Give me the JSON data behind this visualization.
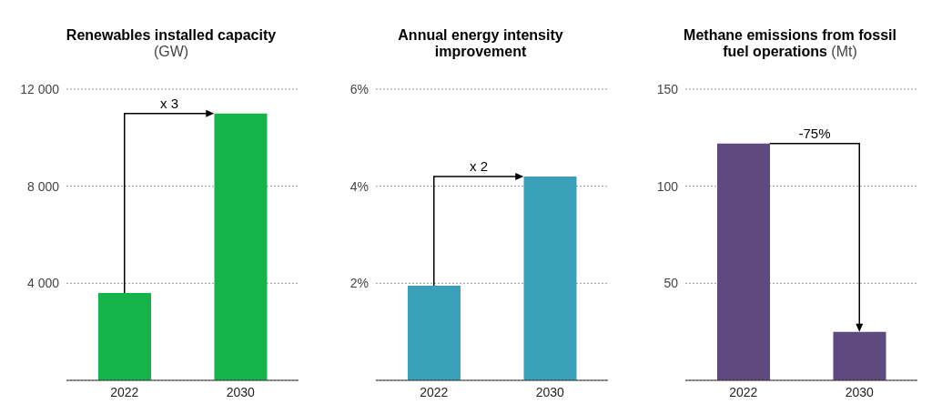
{
  "chart_data": [
    {
      "type": "bar",
      "title": "Renewables installed capacity (GW)",
      "categories": [
        "2022",
        "2030"
      ],
      "values": [
        3600,
        11000
      ],
      "color": "#14b44a",
      "ylim": [
        0,
        12000
      ],
      "yticks": [
        {
          "value": 4000,
          "label": "4 000"
        },
        {
          "value": 8000,
          "label": "8 000"
        },
        {
          "value": 12000,
          "label": "12 000"
        }
      ],
      "grid": "y",
      "annotations": [
        "x 3"
      ]
    },
    {
      "type": "bar",
      "title": "Annual energy intensity improvement",
      "categories": [
        "2022",
        "2030"
      ],
      "values": [
        1.95,
        4.2
      ],
      "color": "#3aa0ba",
      "ylim": [
        0,
        6
      ],
      "yticks": [
        {
          "value": 2,
          "label": "2%"
        },
        {
          "value": 4,
          "label": "4%"
        },
        {
          "value": 6,
          "label": "6%"
        }
      ],
      "grid": "y",
      "annotations": [
        "x 2"
      ]
    },
    {
      "type": "bar",
      "title": "Methane emissions from fossil fuel operations (Mt)",
      "categories": [
        "2022",
        "2030"
      ],
      "values": [
        122,
        25
      ],
      "color": "#5e4a7e",
      "ylim": [
        0,
        150
      ],
      "yticks": [
        50,
        100,
        150
      ],
      "grid": "y",
      "annotations": [
        "-75%"
      ]
    }
  ]
}
